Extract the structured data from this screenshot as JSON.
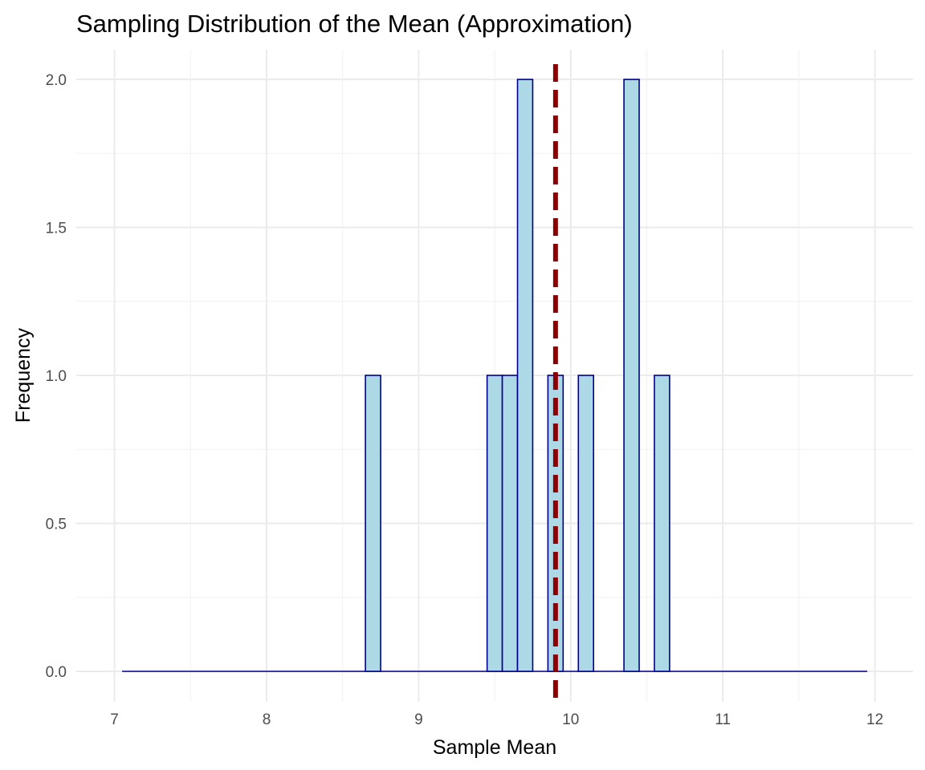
{
  "chart_data": {
    "type": "bar",
    "title": "Sampling Distribution of the Mean (Approximation)",
    "xlabel": "Sample Mean",
    "ylabel": "Frequency",
    "xlim": [
      7,
      12
    ],
    "ylim": [
      0,
      2
    ],
    "x_ticks": [
      7,
      8,
      9,
      10,
      11,
      12
    ],
    "x_tick_labels": [
      "7",
      "8",
      "9",
      "10",
      "11",
      "12"
    ],
    "y_ticks": [
      0,
      0.5,
      1,
      1.5,
      2
    ],
    "y_tick_labels": [
      "0.0",
      "0.5",
      "1.0",
      "1.5",
      "2.0"
    ],
    "bin_width": 0.1,
    "bins": [
      {
        "start": 8.65,
        "end": 8.75,
        "count": 1
      },
      {
        "start": 9.45,
        "end": 9.55,
        "count": 1
      },
      {
        "start": 9.55,
        "end": 9.65,
        "count": 1
      },
      {
        "start": 9.65,
        "end": 9.75,
        "count": 2
      },
      {
        "start": 9.85,
        "end": 9.95,
        "count": 1
      },
      {
        "start": 10.05,
        "end": 10.15,
        "count": 1
      },
      {
        "start": 10.35,
        "end": 10.45,
        "count": 2
      },
      {
        "start": 10.55,
        "end": 10.65,
        "count": 1
      }
    ],
    "baseline_range": [
      7.05,
      11.95
    ],
    "reference_line": {
      "x": 9.9,
      "style": "dashed",
      "color": "#8b0000"
    },
    "bar_fill": "#add8e6",
    "bar_stroke": "#00008b",
    "grid": true,
    "legend": "none"
  }
}
